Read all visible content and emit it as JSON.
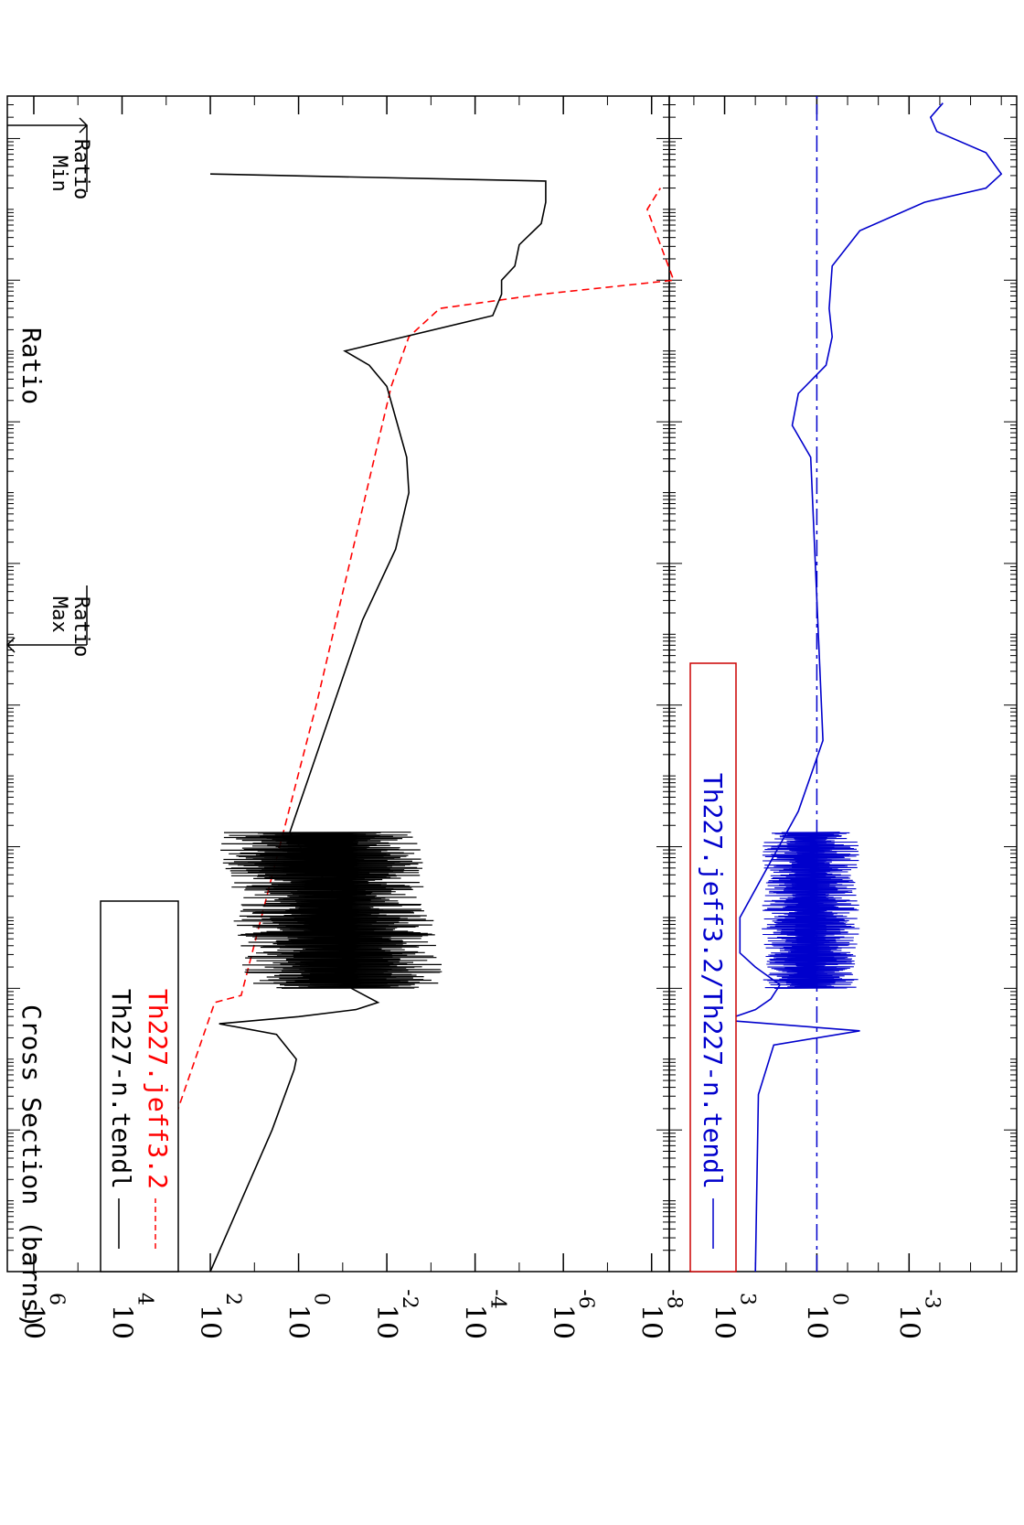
{
  "chart_data": [
    {
      "type": "line",
      "panel": "cross-section",
      "ylabel": "Cross Section (barns)",
      "y_scale": "log",
      "ylim_exponent": [
        -8,
        6
      ],
      "ytick_base": "10",
      "yticks": [
        {
          "exp": "6",
          "value": 1000000
        },
        {
          "exp": "4",
          "value": 10000
        },
        {
          "exp": "2",
          "value": 100
        },
        {
          "exp": "0",
          "value": 1
        },
        {
          "exp": "-2",
          "value": 0.01
        },
        {
          "exp": "-4",
          "value": 0.0001
        },
        {
          "exp": "-6",
          "value": 1e-06
        },
        {
          "exp": "-8",
          "value": 1e-08
        }
      ],
      "legend": {
        "placement": "bottom-left",
        "entries": [
          {
            "label": "Th227-n.tendl",
            "color": "#000000",
            "style": "solid"
          },
          {
            "label": "Th227.jeff3.2",
            "color": "#ff0000",
            "style": "dashed"
          }
        ]
      },
      "series": [
        {
          "name": "Th227-n.tendl",
          "color": "#000000",
          "points_x_decade_y_log10": [
            [
              0.0,
              2.0
            ],
            [
              1.0,
              1.3
            ],
            [
              2.0,
              0.6
            ],
            [
              2.85,
              0.1
            ],
            [
              3.0,
              0.05
            ],
            [
              3.35,
              0.5
            ],
            [
              3.5,
              1.8
            ],
            [
              3.6,
              0.0
            ],
            [
              3.7,
              -1.3
            ],
            [
              3.8,
              -1.8
            ],
            [
              4.0,
              -1.2
            ],
            [
              5.0,
              -1.2
            ],
            [
              6.2,
              0.2
            ],
            [
              7.2,
              -0.35
            ],
            [
              8.2,
              -0.9
            ],
            [
              9.2,
              -1.45
            ],
            [
              10.2,
              -2.2
            ],
            [
              11.0,
              -2.5
            ],
            [
              11.5,
              -2.45
            ],
            [
              12.5,
              -2.0
            ],
            [
              12.8,
              -1.6
            ],
            [
              13.0,
              -1.05
            ],
            [
              13.5,
              -4.4
            ],
            [
              13.8,
              -4.6
            ],
            [
              14.0,
              -4.6
            ],
            [
              14.2,
              -4.9
            ],
            [
              14.5,
              -5.0
            ],
            [
              14.8,
              -5.5
            ],
            [
              15.1,
              -5.6
            ],
            [
              15.4,
              -5.6
            ],
            [
              15.5,
              2.0
            ]
          ]
        },
        {
          "name": "Th227.jeff3.2",
          "color": "#ff0000",
          "points_x_decade_y_log10": [
            [
              0.0,
              4.0
            ],
            [
              3.8,
              1.9
            ],
            [
              3.9,
              1.3
            ],
            [
              8.0,
              -0.4
            ],
            [
              12.5,
              -2.1
            ],
            [
              13.2,
              -2.5
            ],
            [
              13.6,
              -3.2
            ],
            [
              13.8,
              -5.5
            ],
            [
              14.0,
              -8.5
            ],
            [
              15.0,
              -7.9
            ],
            [
              15.2,
              -8.1
            ],
            [
              15.3,
              -8.2
            ]
          ]
        }
      ]
    },
    {
      "type": "line",
      "panel": "ratio",
      "ylabel": "Ratio",
      "y_scale": "log",
      "ytick_base": "10",
      "yticks": [
        {
          "exp": "3",
          "value": 1000
        },
        {
          "exp": "0",
          "value": 1
        },
        {
          "exp": "-3",
          "value": 0.001
        }
      ],
      "legend": {
        "placement": "bottom-left",
        "entries": [
          {
            "label": "Th227.jeff3.2/Th227-n.tendl",
            "color": "#0000cc",
            "style": "solid"
          }
        ]
      },
      "series": [
        {
          "name": "Th227.jeff3.2/Th227-n.tendl",
          "color": "#0000cc",
          "reference_line": 1,
          "points_x_decade_y_log10": [
            [
              0.0,
              2.0
            ],
            [
              2.5,
              1.9
            ],
            [
              3.2,
              1.4
            ],
            [
              3.4,
              -1.4
            ],
            [
              3.55,
              3.0
            ],
            [
              3.7,
              2.0
            ],
            [
              3.85,
              1.5
            ],
            [
              4.05,
              1.2
            ],
            [
              4.3,
              2.0
            ],
            [
              4.5,
              2.5
            ],
            [
              5.0,
              2.5
            ],
            [
              6.5,
              0.6
            ],
            [
              7.5,
              -0.2
            ],
            [
              11.5,
              0.2
            ],
            [
              11.95,
              0.8
            ],
            [
              12.4,
              0.6
            ],
            [
              12.8,
              -0.3
            ],
            [
              13.2,
              -0.5
            ],
            [
              13.6,
              -0.4
            ],
            [
              14.2,
              -0.5
            ],
            [
              14.7,
              -1.4
            ],
            [
              15.1,
              -3.5
            ],
            [
              15.3,
              -5.5
            ],
            [
              15.5,
              -6.0
            ],
            [
              15.8,
              -5.5
            ],
            [
              16.1,
              -3.9
            ],
            [
              16.3,
              -3.7
            ],
            [
              16.5,
              -4.1
            ]
          ]
        }
      ]
    }
  ],
  "annotations": {
    "max_ratio": {
      "line1": "Max",
      "line2": "Ratio"
    },
    "min_ratio": {
      "line1": "Min",
      "line2": "Ratio"
    }
  }
}
